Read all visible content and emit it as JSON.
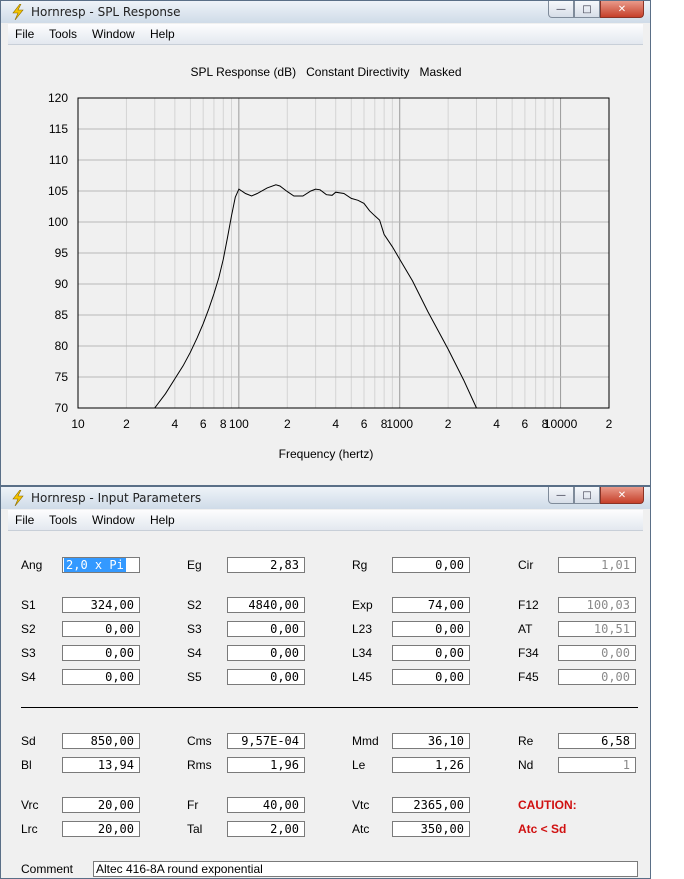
{
  "window1": {
    "title": "Hornresp - SPL Response",
    "menu": [
      "File",
      "Tools",
      "Window",
      "Help"
    ],
    "caption_buttons": [
      "minimize-button",
      "maximize-button",
      "close-button"
    ]
  },
  "chart_data": {
    "type": "line",
    "title": "SPL Response (dB)   Constant Directivity   Masked",
    "xlabel": "Frequency (hertz)",
    "ylabel": "",
    "x_scale": "log",
    "xlim": [
      10,
      20000
    ],
    "ylim": [
      70,
      120
    ],
    "y_ticks": [
      120,
      115,
      110,
      105,
      100,
      95,
      90,
      85,
      80,
      75,
      70
    ],
    "x_tick_labels": [
      {
        "f": 10,
        "label": "10"
      },
      {
        "f": 20,
        "label": "2"
      },
      {
        "f": 40,
        "label": "4"
      },
      {
        "f": 60,
        "label": "6"
      },
      {
        "f": 80,
        "label": "8"
      },
      {
        "f": 100,
        "label": "100"
      },
      {
        "f": 200,
        "label": "2"
      },
      {
        "f": 400,
        "label": "4"
      },
      {
        "f": 600,
        "label": "6"
      },
      {
        "f": 800,
        "label": "8"
      },
      {
        "f": 1000,
        "label": "1000"
      },
      {
        "f": 2000,
        "label": "2"
      },
      {
        "f": 4000,
        "label": "4"
      },
      {
        "f": 6000,
        "label": "6"
      },
      {
        "f": 8000,
        "label": "8"
      },
      {
        "f": 10000,
        "label": "10000"
      },
      {
        "f": 20000,
        "label": "2"
      }
    ],
    "grid": true,
    "series": [
      {
        "name": "",
        "x": [
          30,
          35,
          40,
          45,
          50,
          55,
          60,
          65,
          70,
          75,
          80,
          85,
          90,
          95,
          100,
          110,
          120,
          130,
          150,
          170,
          180,
          200,
          220,
          250,
          280,
          300,
          320,
          350,
          380,
          400,
          450,
          500,
          550,
          600,
          650,
          700,
          750,
          800,
          900,
          1000,
          1200,
          1500,
          2000,
          2500,
          3000
        ],
        "y": [
          70,
          72.3,
          74.7,
          76.8,
          79,
          81.3,
          83.6,
          86,
          88.4,
          91,
          94,
          97.5,
          101,
          104,
          105.3,
          104.6,
          104.2,
          104.6,
          105.5,
          106,
          105.8,
          104.9,
          104.2,
          104.2,
          105,
          105.3,
          105.2,
          104.4,
          104.3,
          104.8,
          104.6,
          103.8,
          103.5,
          103,
          101.8,
          101,
          100.3,
          98,
          96,
          94,
          90.5,
          85.5,
          79.5,
          74.5,
          70
        ]
      }
    ]
  },
  "window2": {
    "title": "Hornresp - Input Parameters",
    "menu": [
      "File",
      "Tools",
      "Window",
      "Help"
    ],
    "params": {
      "Ang": {
        "label": "Ang",
        "value": "2,0 x Pi"
      },
      "Eg": {
        "label": "Eg",
        "value": "2,83"
      },
      "Rg": {
        "label": "Rg",
        "value": "0,00"
      },
      "Cir": {
        "label": "Cir",
        "value": "1,01"
      },
      "S1": {
        "label": "S1",
        "value": "324,00"
      },
      "S2a": {
        "label": "S2",
        "value": "4840,00"
      },
      "Exp": {
        "label": "Exp",
        "value": "74,00"
      },
      "F12": {
        "label": "F12",
        "value": "100,03"
      },
      "S2b": {
        "label": "S2",
        "value": "0,00"
      },
      "S3a": {
        "label": "S3",
        "value": "0,00"
      },
      "L23": {
        "label": "L23",
        "value": "0,00"
      },
      "AT": {
        "label": "AT",
        "value": "10,51"
      },
      "S3b": {
        "label": "S3",
        "value": "0,00"
      },
      "S4a": {
        "label": "S4",
        "value": "0,00"
      },
      "L34": {
        "label": "L34",
        "value": "0,00"
      },
      "F34": {
        "label": "F34",
        "value": "0,00"
      },
      "S4b": {
        "label": "S4",
        "value": "0,00"
      },
      "S5": {
        "label": "S5",
        "value": "0,00"
      },
      "L45": {
        "label": "L45",
        "value": "0,00"
      },
      "F45": {
        "label": "F45",
        "value": "0,00"
      },
      "Sd": {
        "label": "Sd",
        "value": "850,00"
      },
      "Cms": {
        "label": "Cms",
        "value": "9,57E-04"
      },
      "Mmd": {
        "label": "Mmd",
        "value": "36,10"
      },
      "Re": {
        "label": "Re",
        "value": "6,58"
      },
      "Bl": {
        "label": "Bl",
        "value": "13,94"
      },
      "Rms": {
        "label": "Rms",
        "value": "1,96"
      },
      "Le": {
        "label": "Le",
        "value": "1,26"
      },
      "Nd": {
        "label": "Nd",
        "value": "1"
      },
      "Vrc": {
        "label": "Vrc",
        "value": "20,00"
      },
      "Fr": {
        "label": "Fr",
        "value": "40,00"
      },
      "Vtc": {
        "label": "Vtc",
        "value": "2365,00"
      },
      "Lrc": {
        "label": "Lrc",
        "value": "20,00"
      },
      "Tal": {
        "label": "Tal",
        "value": "2,00"
      },
      "Atc": {
        "label": "Atc",
        "value": "350,00"
      }
    },
    "caution_title": "CAUTION:",
    "caution_text": "Atc < Sd",
    "comment_label": "Comment",
    "comment_value": "Altec 416-8A round exponential"
  },
  "colors": {
    "caution": "#d01010",
    "selection": "#3399ff"
  }
}
